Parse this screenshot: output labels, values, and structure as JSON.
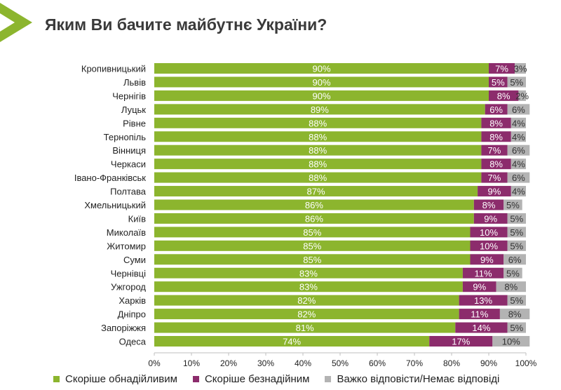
{
  "colors": {
    "accent": "#8cb52e",
    "title": "#3a3a3a",
    "series": [
      "#8cb52e",
      "#8c2c6c",
      "#b3b3b3"
    ]
  },
  "icons": {
    "header": "green-arrow-chevron"
  },
  "chart_data": {
    "type": "bar",
    "orientation": "horizontal",
    "stacked": true,
    "title": "Яким Ви бачите майбутнє України?",
    "xlim": [
      0,
      100
    ],
    "x_ticks": [
      "0%",
      "10%",
      "20%",
      "30%",
      "40%",
      "50%",
      "60%",
      "70%",
      "80%",
      "90%",
      "100%"
    ],
    "grid": false,
    "legend_position": "bottom",
    "categories": [
      "Кропивницький",
      "Львів",
      "Чернігів",
      "Луцьк",
      "Рівне",
      "Тернопіль",
      "Вінниця",
      "Черкаси",
      "Івано-Франківськ",
      "Полтава",
      "Хмельницький",
      "Київ",
      "Миколаїв",
      "Житомир",
      "Суми",
      "Чернівці",
      "Ужгород",
      "Харків",
      "Дніпро",
      "Запоріжжя",
      "Одеса"
    ],
    "series": [
      {
        "name": "Скоріше обнадійливим",
        "values": [
          90,
          90,
          90,
          89,
          88,
          88,
          88,
          88,
          88,
          87,
          86,
          86,
          85,
          85,
          85,
          83,
          83,
          82,
          82,
          81,
          74
        ]
      },
      {
        "name": "Скоріше безнадійним",
        "values": [
          7,
          5,
          8,
          6,
          8,
          8,
          7,
          8,
          7,
          9,
          8,
          9,
          10,
          10,
          9,
          11,
          9,
          13,
          11,
          14,
          17
        ]
      },
      {
        "name": "Важко відповісти/Немає відповіді",
        "values": [
          3,
          5,
          2,
          6,
          4,
          4,
          6,
          4,
          6,
          4,
          5,
          5,
          5,
          5,
          6,
          5,
          8,
          5,
          8,
          5,
          10
        ]
      }
    ]
  }
}
